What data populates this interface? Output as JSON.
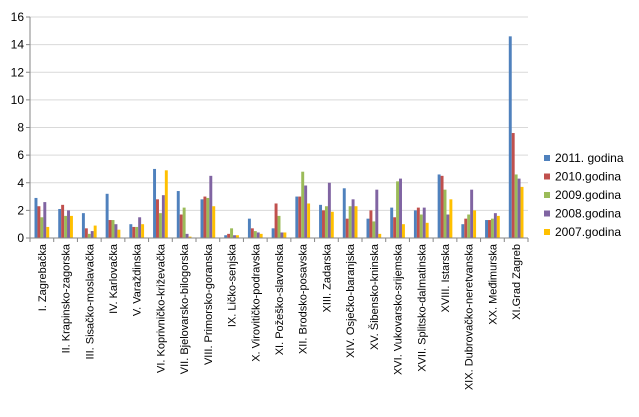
{
  "chart_data": {
    "type": "bar",
    "title": "",
    "xlabel": "",
    "ylabel": "",
    "ylim": [
      0,
      16
    ],
    "yticks": [
      0,
      2,
      4,
      6,
      8,
      10,
      12,
      14,
      16
    ],
    "grid": true,
    "legend_position": "right",
    "categories": [
      "I. Zagrebačka",
      "II. Krapinsko-zagorska",
      "III. Sisačko-moslavačka",
      "IV. Karlovačka",
      "V. Varaždinska",
      "VI. Koprivničko-križevačka",
      "VII. Bjelovarsko-bilogorska",
      "VIII. Primorsko-goranska",
      "IX. Ličko-senjska",
      "X. Virovitičko-podravska",
      "XI. Požeško-slavonska",
      "XII. Brodsko-posavska",
      "XIII. Zadarska",
      "XIV. Osječko-baranjska",
      "XV. Šibensko-kninska",
      "XVI. Vukovarsko-srijemska",
      "XVII. Splitsko-dalmatinska",
      "XVIII. Istarska",
      "XIX. Dubrovačko-neretvanska",
      "XX. Međimurska",
      "XI.Grad Zagreb"
    ],
    "series": [
      {
        "name": "2011. godina",
        "color": "#4F81BD",
        "values": [
          2.9,
          2.1,
          1.8,
          3.2,
          1.0,
          5.0,
          3.4,
          2.8,
          0.2,
          1.4,
          0.7,
          3.0,
          2.4,
          3.6,
          1.4,
          2.2,
          2.0,
          4.6,
          1.0,
          1.3,
          14.6
        ]
      },
      {
        "name": "2010.godina",
        "color": "#C0504D",
        "values": [
          2.3,
          2.4,
          0.7,
          1.3,
          0.8,
          2.8,
          1.7,
          3.0,
          0.3,
          0.7,
          2.5,
          3.0,
          2.0,
          1.4,
          2.0,
          1.5,
          2.2,
          4.5,
          1.4,
          1.3,
          7.6
        ]
      },
      {
        "name": "2009.godina",
        "color": "#9BBB59",
        "values": [
          1.5,
          1.6,
          0.3,
          1.3,
          0.8,
          1.8,
          2.2,
          2.9,
          0.7,
          0.5,
          1.6,
          4.8,
          2.3,
          2.3,
          1.2,
          4.1,
          1.7,
          3.5,
          1.7,
          1.4,
          4.6
        ]
      },
      {
        "name": "2008.godina",
        "color": "#8064A2",
        "values": [
          2.6,
          2.0,
          0.5,
          1.0,
          1.5,
          3.1,
          0.3,
          4.5,
          0.2,
          0.4,
          0.4,
          3.8,
          4.0,
          2.8,
          3.5,
          4.3,
          2.2,
          1.7,
          3.5,
          1.8,
          4.3
        ]
      },
      {
        "name": "2007.godina",
        "color": "#FFC000",
        "values": [
          0.8,
          1.6,
          0.9,
          0.6,
          1.0,
          4.9,
          0.1,
          2.3,
          0.2,
          0.3,
          0.4,
          2.5,
          1.9,
          2.3,
          0.3,
          1.0,
          1.1,
          2.8,
          2.0,
          1.6,
          3.7
        ]
      }
    ]
  }
}
